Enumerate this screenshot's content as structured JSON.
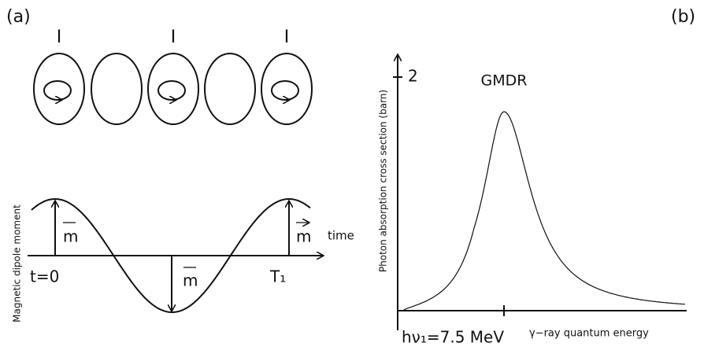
{
  "panel_a": {
    "label": "(a)",
    "states": [
      "I",
      "I",
      "I"
    ],
    "moment_labels": [
      "m",
      "m",
      "m"
    ],
    "time_axis": "time",
    "start": "t=0",
    "period": "T₁",
    "y_axis": "Magnetic dipole moment"
  },
  "panel_b": {
    "label": "(b)",
    "y_tick": "2",
    "peak_label": "GMDR",
    "y_axis": "Photon absorption cross section (barn)",
    "peak_energy": "hν₁=7.5 MeV",
    "x_axis": "γ−ray quantum energy"
  }
}
